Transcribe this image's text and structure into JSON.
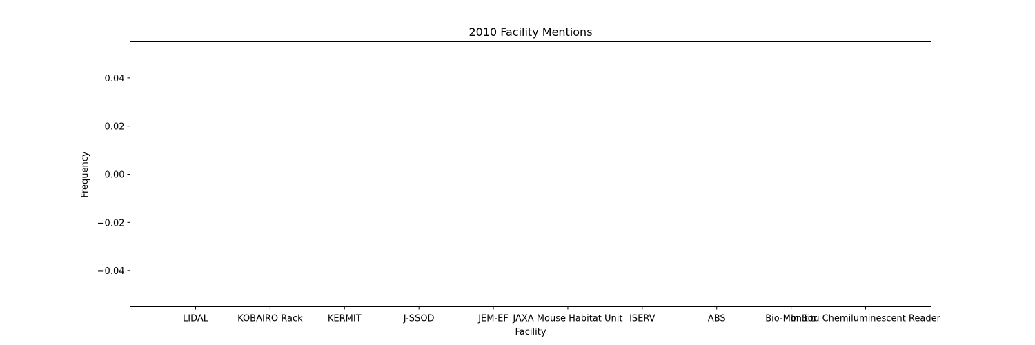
{
  "chart_data": {
    "type": "bar",
    "title": "2010 Facility Mentions",
    "xlabel": "Facility",
    "ylabel": "Frequency",
    "categories": [
      "LIDAL",
      "KOBAIRO Rack",
      "KERMIT",
      "J-SSOD",
      "JEM-EF",
      "JAXA Mouse Habitat Unit",
      "ISERV",
      "ABS",
      "Bio-Monitor",
      "In Situ Chemiluminescent Reader"
    ],
    "values": [
      0,
      0,
      0,
      0,
      0,
      0,
      0,
      0,
      0,
      0
    ],
    "ylim": [
      -0.055,
      0.055
    ],
    "yticks": [
      "−0.04",
      "−0.02",
      "0.00",
      "0.02",
      "0.04"
    ],
    "ytick_values": [
      -0.04,
      -0.02,
      0,
      0.02,
      0.04
    ],
    "grid": false,
    "bar_color": "#1f77b4"
  }
}
